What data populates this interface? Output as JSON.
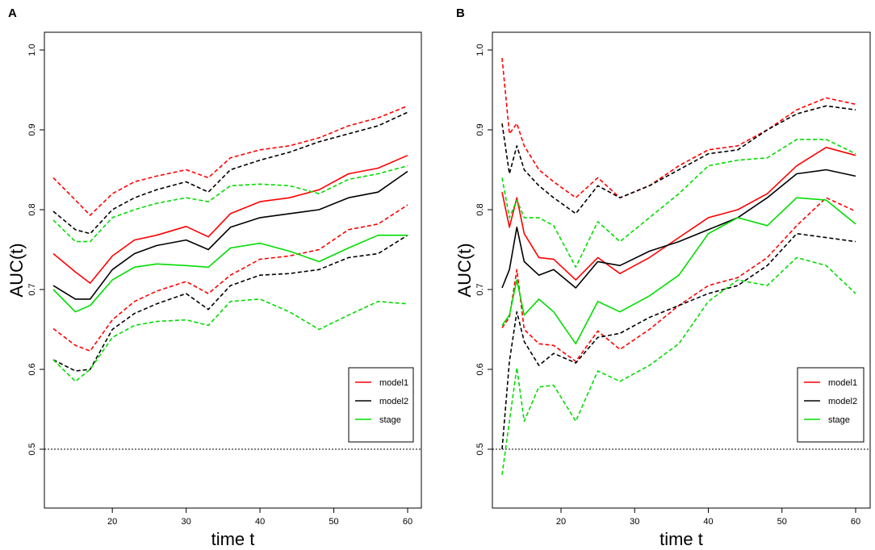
{
  "chart_data": [
    {
      "panel": "A",
      "type": "line",
      "xlabel": "time t",
      "ylabel": "AUC(t)",
      "xlim": [
        12,
        60
      ],
      "ylim": [
        0.4,
        1.0
      ],
      "xticks": [
        20,
        30,
        40,
        50,
        60
      ],
      "yticks": [
        0.5,
        0.6,
        0.7,
        0.8,
        0.9,
        1.0
      ],
      "reference_line": 0.5,
      "legend": {
        "placement": "bottom-right",
        "entries": [
          "model1",
          "model2",
          "stage"
        ]
      },
      "x": [
        12,
        15,
        17,
        20,
        23,
        26,
        30,
        33,
        36,
        40,
        44,
        48,
        52,
        56,
        60
      ],
      "series": [
        {
          "name": "model1",
          "color": "#ff0000",
          "style": "solid",
          "values": [
            0.745,
            0.722,
            0.708,
            0.742,
            0.762,
            0.768,
            0.779,
            0.766,
            0.795,
            0.81,
            0.815,
            0.825,
            0.845,
            0.852,
            0.868
          ]
        },
        {
          "name": "model1 upper",
          "color": "#ff0000",
          "style": "dashed",
          "values": [
            0.84,
            0.812,
            0.793,
            0.82,
            0.835,
            0.842,
            0.85,
            0.84,
            0.865,
            0.875,
            0.88,
            0.89,
            0.905,
            0.915,
            0.93
          ]
        },
        {
          "name": "model1 lower",
          "color": "#ff0000",
          "style": "dashed",
          "values": [
            0.651,
            0.63,
            0.623,
            0.662,
            0.685,
            0.698,
            0.71,
            0.695,
            0.718,
            0.738,
            0.742,
            0.75,
            0.775,
            0.782,
            0.806
          ]
        },
        {
          "name": "model2",
          "color": "#000000",
          "style": "solid",
          "values": [
            0.705,
            0.688,
            0.688,
            0.725,
            0.745,
            0.755,
            0.762,
            0.75,
            0.778,
            0.79,
            0.795,
            0.8,
            0.815,
            0.822,
            0.848
          ]
        },
        {
          "name": "model2 upper",
          "color": "#000000",
          "style": "dashed",
          "values": [
            0.798,
            0.775,
            0.77,
            0.8,
            0.815,
            0.825,
            0.835,
            0.822,
            0.85,
            0.862,
            0.872,
            0.885,
            0.895,
            0.905,
            0.922
          ]
        },
        {
          "name": "model2 lower",
          "color": "#000000",
          "style": "dashed",
          "values": [
            0.612,
            0.598,
            0.6,
            0.65,
            0.67,
            0.682,
            0.695,
            0.675,
            0.705,
            0.718,
            0.72,
            0.725,
            0.74,
            0.745,
            0.768
          ]
        },
        {
          "name": "stage",
          "color": "#00dd00",
          "style": "solid",
          "values": [
            0.7,
            0.672,
            0.68,
            0.712,
            0.728,
            0.732,
            0.73,
            0.728,
            0.752,
            0.758,
            0.748,
            0.735,
            0.752,
            0.768,
            0.768
          ]
        },
        {
          "name": "stage upper",
          "color": "#00dd00",
          "style": "dashed",
          "values": [
            0.787,
            0.76,
            0.76,
            0.79,
            0.8,
            0.808,
            0.815,
            0.81,
            0.83,
            0.832,
            0.83,
            0.82,
            0.838,
            0.845,
            0.855
          ]
        },
        {
          "name": "stage lower",
          "color": "#00dd00",
          "style": "dashed",
          "values": [
            0.612,
            0.585,
            0.6,
            0.64,
            0.655,
            0.66,
            0.662,
            0.655,
            0.685,
            0.688,
            0.672,
            0.65,
            0.668,
            0.685,
            0.682
          ]
        }
      ]
    },
    {
      "panel": "B",
      "type": "line",
      "xlabel": "time t",
      "ylabel": "AUC(t)",
      "xlim": [
        12,
        60
      ],
      "ylim": [
        0.4,
        1.0
      ],
      "xticks": [
        20,
        30,
        40,
        50,
        60
      ],
      "yticks": [
        0.5,
        0.6,
        0.7,
        0.8,
        0.9,
        1.0
      ],
      "reference_line": 0.5,
      "legend": {
        "placement": "bottom-right",
        "entries": [
          "model1",
          "model2",
          "stage"
        ]
      },
      "x": [
        12,
        13,
        14,
        15,
        17,
        19,
        22,
        25,
        28,
        32,
        36,
        40,
        44,
        48,
        52,
        56,
        60
      ],
      "series": [
        {
          "name": "model1",
          "color": "#ff0000",
          "style": "solid",
          "values": [
            0.822,
            0.778,
            0.815,
            0.77,
            0.74,
            0.738,
            0.712,
            0.74,
            0.72,
            0.74,
            0.765,
            0.79,
            0.8,
            0.82,
            0.855,
            0.878,
            0.868
          ]
        },
        {
          "name": "model1 upper",
          "color": "#ff0000",
          "style": "dashed",
          "values": [
            0.99,
            0.895,
            0.908,
            0.88,
            0.85,
            0.835,
            0.815,
            0.84,
            0.815,
            0.83,
            0.855,
            0.875,
            0.88,
            0.9,
            0.925,
            0.94,
            0.932
          ]
        },
        {
          "name": "model1 lower",
          "color": "#ff0000",
          "style": "dashed",
          "values": [
            0.652,
            0.665,
            0.725,
            0.65,
            0.632,
            0.63,
            0.61,
            0.648,
            0.625,
            0.65,
            0.68,
            0.705,
            0.715,
            0.74,
            0.78,
            0.815,
            0.798
          ]
        },
        {
          "name": "model2",
          "color": "#000000",
          "style": "solid",
          "values": [
            0.702,
            0.725,
            0.778,
            0.735,
            0.718,
            0.725,
            0.702,
            0.735,
            0.73,
            0.748,
            0.76,
            0.775,
            0.79,
            0.815,
            0.845,
            0.85,
            0.842
          ]
        },
        {
          "name": "model2 upper",
          "color": "#000000",
          "style": "dashed",
          "values": [
            0.908,
            0.845,
            0.88,
            0.85,
            0.83,
            0.815,
            0.795,
            0.83,
            0.815,
            0.83,
            0.85,
            0.87,
            0.875,
            0.9,
            0.92,
            0.93,
            0.925
          ]
        },
        {
          "name": "model2 lower",
          "color": "#000000",
          "style": "dashed",
          "values": [
            0.5,
            0.61,
            0.672,
            0.635,
            0.605,
            0.62,
            0.608,
            0.64,
            0.645,
            0.665,
            0.68,
            0.695,
            0.705,
            0.73,
            0.77,
            0.765,
            0.76
          ]
        },
        {
          "name": "stage",
          "color": "#00dd00",
          "style": "solid",
          "values": [
            0.655,
            0.668,
            0.712,
            0.668,
            0.688,
            0.672,
            0.632,
            0.685,
            0.672,
            0.692,
            0.718,
            0.77,
            0.79,
            0.78,
            0.815,
            0.812,
            0.782
          ]
        },
        {
          "name": "stage upper",
          "color": "#00dd00",
          "style": "dashed",
          "values": [
            0.84,
            0.79,
            0.812,
            0.79,
            0.79,
            0.78,
            0.728,
            0.785,
            0.76,
            0.79,
            0.82,
            0.855,
            0.862,
            0.865,
            0.888,
            0.888,
            0.87
          ]
        },
        {
          "name": "stage lower",
          "color": "#00dd00",
          "style": "dashed",
          "values": [
            0.468,
            0.535,
            0.602,
            0.535,
            0.578,
            0.58,
            0.535,
            0.598,
            0.585,
            0.605,
            0.632,
            0.685,
            0.712,
            0.705,
            0.74,
            0.73,
            0.695
          ]
        }
      ]
    }
  ]
}
